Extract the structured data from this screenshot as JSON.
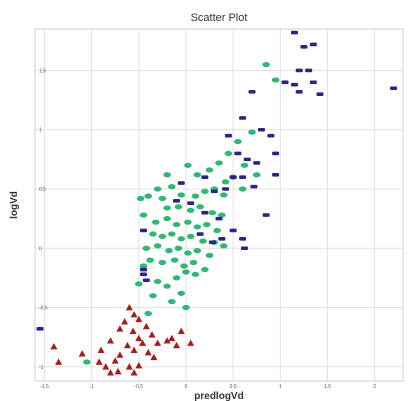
{
  "chart_data": {
    "type": "scatter",
    "title": "Scatter Plot",
    "xlabel": "predlogVd",
    "ylabel": "logVd",
    "xlim": [
      -1.6,
      2.3
    ],
    "ylim": [
      -1.12,
      1.85
    ],
    "xticks": [
      -1.5,
      -1,
      -0.5,
      0,
      0.5,
      1,
      1.5,
      2
    ],
    "xtick_labels": [
      "-1.5",
      "-1",
      "-0.5",
      "0",
      "0.5",
      "1",
      "1.5",
      "2"
    ],
    "yticks": [
      -1,
      -0.5,
      0,
      0.5,
      1,
      1.5
    ],
    "ytick_labels": [
      "-1",
      "-0.5",
      "0",
      "0.5",
      "1",
      "1.5"
    ],
    "grid": true,
    "series": [
      {
        "marker": "triangle",
        "color": "#a61c1c",
        "points": [
          [
            -0.6,
            -0.5
          ],
          [
            -0.55,
            -0.56
          ],
          [
            -0.5,
            -0.6
          ],
          [
            -0.65,
            -0.62
          ],
          [
            -0.42,
            -0.66
          ],
          [
            -0.7,
            -0.68
          ],
          [
            -0.56,
            -0.7
          ],
          [
            -0.36,
            -0.73
          ],
          [
            -0.5,
            -0.76
          ],
          [
            -0.8,
            -0.78
          ],
          [
            -0.46,
            -0.8
          ],
          [
            -0.62,
            -0.82
          ],
          [
            -0.3,
            -0.8
          ],
          [
            -0.2,
            -0.78
          ],
          [
            -0.55,
            -0.86
          ],
          [
            -0.9,
            -0.86
          ],
          [
            -0.4,
            -0.88
          ],
          [
            -0.7,
            -0.9
          ],
          [
            -0.34,
            -0.92
          ],
          [
            -0.75,
            -0.95
          ],
          [
            -1.4,
            -0.83
          ],
          [
            -1.1,
            -0.89
          ],
          [
            -1.35,
            -0.96
          ],
          [
            -0.92,
            -0.96
          ],
          [
            -0.85,
            -1.0
          ],
          [
            -0.6,
            -1.0
          ],
          [
            -0.5,
            -0.99
          ],
          [
            -0.72,
            -1.04
          ],
          [
            -0.8,
            -1.05
          ],
          [
            -0.55,
            -1.05
          ],
          [
            -0.15,
            -0.76
          ],
          [
            -0.1,
            -0.82
          ],
          [
            0.05,
            -0.8
          ],
          [
            -0.05,
            -0.7
          ]
        ]
      },
      {
        "marker": "ellipse",
        "color": "#2eb872",
        "points": [
          [
            -0.48,
            0.42
          ],
          [
            -0.4,
            0.44
          ],
          [
            -0.3,
            0.5
          ],
          [
            -0.25,
            0.42
          ],
          [
            -0.15,
            0.52
          ],
          [
            -0.05,
            0.45
          ],
          [
            0.1,
            0.44
          ],
          [
            0.2,
            0.48
          ],
          [
            0.3,
            0.5
          ],
          [
            0.4,
            0.45
          ],
          [
            -0.2,
            0.34
          ],
          [
            -0.08,
            0.35
          ],
          [
            0.05,
            0.32
          ],
          [
            0.15,
            0.35
          ],
          [
            0.28,
            0.3
          ],
          [
            0.38,
            0.28
          ],
          [
            -0.45,
            0.28
          ],
          [
            -0.32,
            0.22
          ],
          [
            -0.2,
            0.25
          ],
          [
            -0.1,
            0.2
          ],
          [
            0.02,
            0.22
          ],
          [
            0.12,
            0.18
          ],
          [
            0.22,
            0.2
          ],
          [
            0.33,
            0.15
          ],
          [
            -0.35,
            0.12
          ],
          [
            -0.25,
            0.1
          ],
          [
            -0.15,
            0.12
          ],
          [
            -0.05,
            0.08
          ],
          [
            0.05,
            0.1
          ],
          [
            0.18,
            0.06
          ],
          [
            0.3,
            0.05
          ],
          [
            0.4,
            0.02
          ],
          [
            -0.42,
            0.0
          ],
          [
            -0.3,
            0.02
          ],
          [
            -0.18,
            -0.02
          ],
          [
            -0.08,
            0.0
          ],
          [
            0.02,
            -0.04
          ],
          [
            0.12,
            -0.02
          ],
          [
            0.25,
            -0.06
          ],
          [
            -0.38,
            -0.1
          ],
          [
            -0.25,
            -0.12
          ],
          [
            -0.12,
            -0.1
          ],
          [
            -0.02,
            -0.15
          ],
          [
            0.08,
            -0.12
          ],
          [
            0.2,
            -0.18
          ],
          [
            0.0,
            -0.2
          ],
          [
            -0.1,
            -0.25
          ],
          [
            0.1,
            -0.22
          ],
          [
            -0.3,
            -0.28
          ],
          [
            -0.2,
            -0.32
          ],
          [
            -0.45,
            -0.15
          ],
          [
            -0.5,
            -0.3
          ],
          [
            -0.35,
            -0.4
          ],
          [
            -0.15,
            -0.45
          ],
          [
            0.0,
            -0.5
          ],
          [
            -0.05,
            -0.38
          ],
          [
            -0.4,
            -0.55
          ],
          [
            0.12,
            0.62
          ],
          [
            0.25,
            0.66
          ],
          [
            0.35,
            0.72
          ],
          [
            0.45,
            0.8
          ],
          [
            0.55,
            0.9
          ],
          [
            0.7,
            0.98
          ],
          [
            0.75,
            0.62
          ],
          [
            0.62,
            0.7
          ],
          [
            0.5,
            0.6
          ],
          [
            0.6,
            0.5
          ],
          [
            0.42,
            0.56
          ],
          [
            -0.2,
            0.62
          ],
          [
            0.02,
            0.7
          ],
          [
            -1.05,
            -0.96
          ],
          [
            0.85,
            1.55
          ],
          [
            0.95,
            1.42
          ]
        ]
      },
      {
        "marker": "rect",
        "color": "#2a2585",
        "points": [
          [
            1.15,
            1.82
          ],
          [
            1.35,
            1.72
          ],
          [
            1.25,
            1.7
          ],
          [
            1.2,
            1.5
          ],
          [
            1.3,
            1.5
          ],
          [
            1.35,
            1.4
          ],
          [
            1.15,
            1.38
          ],
          [
            1.2,
            1.32
          ],
          [
            1.05,
            1.4
          ],
          [
            1.42,
            1.3
          ],
          [
            2.2,
            1.35
          ],
          [
            0.7,
            1.32
          ],
          [
            0.6,
            1.1
          ],
          [
            0.8,
            1.0
          ],
          [
            0.9,
            0.95
          ],
          [
            0.95,
            0.8
          ],
          [
            0.75,
            0.72
          ],
          [
            0.65,
            0.75
          ],
          [
            0.6,
            0.6
          ],
          [
            0.5,
            0.6
          ],
          [
            0.42,
            0.5
          ],
          [
            0.3,
            0.48
          ],
          [
            0.2,
            0.3
          ],
          [
            0.35,
            0.25
          ],
          [
            0.5,
            0.15
          ],
          [
            0.6,
            0.08
          ],
          [
            0.38,
            0.08
          ],
          [
            0.28,
            0.05
          ],
          [
            0.15,
            0.12
          ],
          [
            0.05,
            0.38
          ],
          [
            -0.1,
            0.4
          ],
          [
            -0.05,
            0.55
          ],
          [
            0.2,
            0.6
          ],
          [
            0.45,
            0.95
          ],
          [
            0.55,
            0.8
          ],
          [
            0.72,
            0.52
          ],
          [
            0.95,
            0.62
          ],
          [
            0.85,
            0.28
          ],
          [
            0.62,
            0.0
          ],
          [
            -0.45,
            0.15
          ],
          [
            -0.45,
            -0.18
          ],
          [
            -0.45,
            -0.22
          ],
          [
            -0.42,
            -0.27
          ],
          [
            -1.75,
            -0.68
          ]
        ]
      }
    ]
  }
}
